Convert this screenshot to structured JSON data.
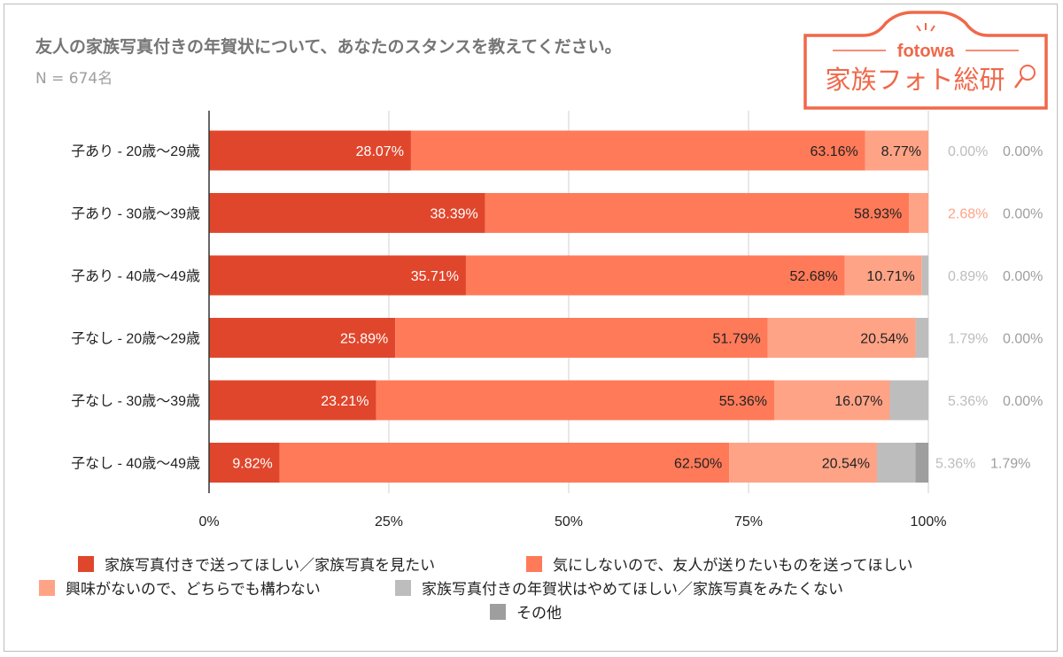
{
  "title": "友人の家族写真付きの年賀状について、あなたのスタンスを教えてください。",
  "subtitle": "N = 674名",
  "logo": {
    "brand": "fotowa",
    "name": "家族フォト総研",
    "color": "#f0684a"
  },
  "chart_data": {
    "type": "bar",
    "orientation": "horizontal",
    "stacked": "percent",
    "categories": [
      "子あり - 20歳〜29歳",
      "子あり - 30歳〜39歳",
      "子あり - 40歳〜49歳",
      "子なし - 20歳〜29歳",
      "子なし - 30歳〜39歳",
      "子なし - 40歳〜49歳"
    ],
    "series": [
      {
        "name": "家族写真付きで送ってほしい／家族写真を見たい",
        "color": "#e0462c",
        "values": [
          28.07,
          38.39,
          35.71,
          25.89,
          23.21,
          9.82
        ]
      },
      {
        "name": "気にしないので、友人が送りたいものを送ってほしい",
        "color": "#ff7a59",
        "values": [
          63.16,
          58.93,
          52.68,
          51.79,
          55.36,
          62.5
        ]
      },
      {
        "name": "興味がないので、どちらでも構わない",
        "color": "#ffa386",
        "values": [
          8.77,
          2.68,
          10.71,
          20.54,
          16.07,
          20.54
        ]
      },
      {
        "name": "家族写真付きの年賀状はやめてほしい／家族写真をみたくない",
        "color": "#bdbdbd",
        "values": [
          0.0,
          0.0,
          0.89,
          1.79,
          5.36,
          5.36
        ]
      },
      {
        "name": "その他",
        "color": "#9e9e9e",
        "values": [
          0.0,
          0.0,
          0.0,
          0.0,
          0.0,
          1.79
        ]
      }
    ],
    "data_labels": [
      [
        "28.07%",
        "63.16%",
        "8.77%",
        "0.00%",
        "0.00%"
      ],
      [
        "38.39%",
        "58.93%",
        "2.68%",
        "0.00%",
        "0.00%"
      ],
      [
        "35.71%",
        "52.68%",
        "10.71%",
        "0.89%",
        "0.00%"
      ],
      [
        "25.89%",
        "51.79%",
        "20.54%",
        "1.79%",
        "0.00%"
      ],
      [
        "23.21%",
        "55.36%",
        "16.07%",
        "5.36%",
        "0.00%"
      ],
      [
        "9.82%",
        "62.50%",
        "20.54%",
        "5.36%",
        "1.79%"
      ]
    ],
    "outside_label_series": [
      [
        3,
        4
      ],
      [
        2,
        4
      ],
      [
        3,
        4
      ],
      [
        3,
        4
      ],
      [
        3,
        4
      ],
      [
        3,
        4
      ]
    ],
    "x_ticks": [
      "0%",
      "25%",
      "50%",
      "75%",
      "100%"
    ],
    "xlim": [
      0,
      100
    ],
    "grid": true,
    "legend_position": "bottom",
    "outside_label_colors": {
      "2": "#ffa386",
      "3": "#bdbdbd",
      "4": "#9e9e9e"
    }
  }
}
